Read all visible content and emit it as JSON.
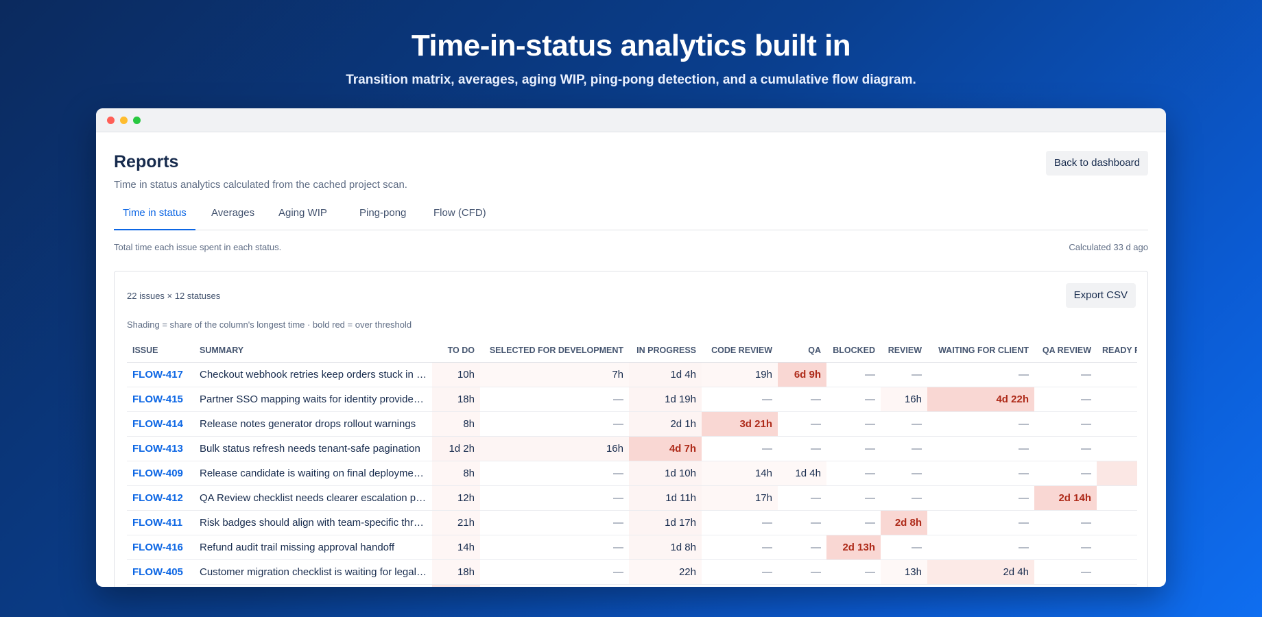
{
  "hero": {
    "title": "Time-in-status analytics built in",
    "subtitle": "Transition matrix, averages, aging WIP, ping-pong detection, and a cumulative flow diagram."
  },
  "page": {
    "title": "Reports",
    "description": "Time in status analytics calculated from the cached project scan.",
    "back_button": "Back to dashboard"
  },
  "tabs": [
    {
      "label": "Time in status",
      "active": true
    },
    {
      "label": "Averages",
      "active": false
    },
    {
      "label": "Aging WIP",
      "active": false
    },
    {
      "label": "Ping-pong",
      "active": false
    },
    {
      "label": "Flow (CFD)",
      "active": false
    }
  ],
  "notes": {
    "left": "Total time each issue spent in each status.",
    "right": "Calculated 33 d ago"
  },
  "panel": {
    "count": "22 issues × 12 statuses",
    "export_button": "Export CSV",
    "legend": "Shading = share of the column's longest time · bold red = over threshold"
  },
  "colors": {
    "accent": "#0c66e4",
    "over_threshold": "#ae2a19",
    "shade_base": "#e34935"
  },
  "table": {
    "columns": [
      "ISSUE",
      "SUMMARY",
      "TO DO",
      "SELECTED FOR DEVELOPMENT",
      "IN PROGRESS",
      "CODE REVIEW",
      "QA",
      "BLOCKED",
      "REVIEW",
      "WAITING FOR CLIENT",
      "QA REVIEW",
      "READY FOR RELEASE"
    ],
    "rows": [
      {
        "issue": "FLOW-417",
        "summary": "Checkout webhook retries keep orders stuck in pending",
        "cells": [
          {
            "v": "10h",
            "s": 0.1
          },
          {
            "v": "7h",
            "s": 0.06
          },
          {
            "v": "1d 4h",
            "s": 0.12
          },
          {
            "v": "19h",
            "s": 0.08
          },
          {
            "v": "6d 9h",
            "s": 1.0,
            "hot": true
          },
          {
            "v": "—",
            "s": 0
          },
          {
            "v": "—",
            "s": 0
          },
          {
            "v": "—",
            "s": 0
          },
          {
            "v": "—",
            "s": 0
          },
          {
            "v": "",
            "s": 0
          }
        ]
      },
      {
        "issue": "FLOW-415",
        "summary": "Partner SSO mapping waits for identity provider confirmation",
        "cells": [
          {
            "v": "18h",
            "s": 0.12
          },
          {
            "v": "—",
            "s": 0
          },
          {
            "v": "1d 19h",
            "s": 0.16
          },
          {
            "v": "—",
            "s": 0
          },
          {
            "v": "—",
            "s": 0
          },
          {
            "v": "—",
            "s": 0
          },
          {
            "v": "16h",
            "s": 0.1
          },
          {
            "v": "4d 22h",
            "s": 1.0,
            "hot": true
          },
          {
            "v": "—",
            "s": 0
          },
          {
            "v": "",
            "s": 0
          }
        ]
      },
      {
        "issue": "FLOW-414",
        "summary": "Release notes generator drops rollout warnings",
        "cells": [
          {
            "v": "8h",
            "s": 0.1
          },
          {
            "v": "—",
            "s": 0
          },
          {
            "v": "2d 1h",
            "s": 0.16
          },
          {
            "v": "3d 21h",
            "s": 1.0,
            "hot": true
          },
          {
            "v": "—",
            "s": 0
          },
          {
            "v": "—",
            "s": 0
          },
          {
            "v": "—",
            "s": 0
          },
          {
            "v": "—",
            "s": 0
          },
          {
            "v": "—",
            "s": 0
          },
          {
            "v": "",
            "s": 0
          }
        ]
      },
      {
        "issue": "FLOW-413",
        "summary": "Bulk status refresh needs tenant-safe pagination",
        "cells": [
          {
            "v": "1d 2h",
            "s": 0.2
          },
          {
            "v": "16h",
            "s": 0.12
          },
          {
            "v": "4d 7h",
            "s": 1.0,
            "hot": true
          },
          {
            "v": "—",
            "s": 0
          },
          {
            "v": "—",
            "s": 0
          },
          {
            "v": "—",
            "s": 0
          },
          {
            "v": "—",
            "s": 0
          },
          {
            "v": "—",
            "s": 0
          },
          {
            "v": "—",
            "s": 0
          },
          {
            "v": "",
            "s": 0
          }
        ]
      },
      {
        "issue": "FLOW-409",
        "summary": "Release candidate is waiting on final deployment approval",
        "cells": [
          {
            "v": "8h",
            "s": 0.1
          },
          {
            "v": "—",
            "s": 0
          },
          {
            "v": "1d 10h",
            "s": 0.14
          },
          {
            "v": "14h",
            "s": 0.06
          },
          {
            "v": "1d 4h",
            "s": 0.06
          },
          {
            "v": "—",
            "s": 0
          },
          {
            "v": "—",
            "s": 0
          },
          {
            "v": "—",
            "s": 0
          },
          {
            "v": "—",
            "s": 0
          },
          {
            "v": "",
            "s": 0.55
          }
        ]
      },
      {
        "issue": "FLOW-412",
        "summary": "QA Review checklist needs clearer escalation path",
        "cells": [
          {
            "v": "12h",
            "s": 0.1
          },
          {
            "v": "—",
            "s": 0
          },
          {
            "v": "1d 11h",
            "s": 0.14
          },
          {
            "v": "17h",
            "s": 0.08
          },
          {
            "v": "—",
            "s": 0
          },
          {
            "v": "—",
            "s": 0
          },
          {
            "v": "—",
            "s": 0
          },
          {
            "v": "—",
            "s": 0
          },
          {
            "v": "2d 14h",
            "s": 1.0,
            "hot": true
          },
          {
            "v": "",
            "s": 0
          }
        ]
      },
      {
        "issue": "FLOW-411",
        "summary": "Risk badges should align with team-specific thresholds",
        "cells": [
          {
            "v": "21h",
            "s": 0.1
          },
          {
            "v": "—",
            "s": 0
          },
          {
            "v": "1d 17h",
            "s": 0.16
          },
          {
            "v": "—",
            "s": 0
          },
          {
            "v": "—",
            "s": 0
          },
          {
            "v": "—",
            "s": 0
          },
          {
            "v": "2d 8h",
            "s": 1.0,
            "hot": true
          },
          {
            "v": "—",
            "s": 0
          },
          {
            "v": "—",
            "s": 0
          },
          {
            "v": "",
            "s": 0
          }
        ]
      },
      {
        "issue": "FLOW-416",
        "summary": "Refund audit trail missing approval handoff",
        "cells": [
          {
            "v": "14h",
            "s": 0.1
          },
          {
            "v": "—",
            "s": 0
          },
          {
            "v": "1d 8h",
            "s": 0.12
          },
          {
            "v": "—",
            "s": 0
          },
          {
            "v": "—",
            "s": 0
          },
          {
            "v": "2d 13h",
            "s": 1.0,
            "hot": true
          },
          {
            "v": "—",
            "s": 0
          },
          {
            "v": "—",
            "s": 0
          },
          {
            "v": "—",
            "s": 0
          },
          {
            "v": "",
            "s": 0
          }
        ]
      },
      {
        "issue": "FLOW-405",
        "summary": "Customer migration checklist is waiting for legal review",
        "cells": [
          {
            "v": "18h",
            "s": 0.1
          },
          {
            "v": "—",
            "s": 0
          },
          {
            "v": "22h",
            "s": 0.08
          },
          {
            "v": "—",
            "s": 0
          },
          {
            "v": "—",
            "s": 0
          },
          {
            "v": "—",
            "s": 0
          },
          {
            "v": "13h",
            "s": 0.06
          },
          {
            "v": "2d 4h",
            "s": 0.45
          },
          {
            "v": "—",
            "s": 0
          },
          {
            "v": "",
            "s": 0
          }
        ]
      },
      {
        "issue": "",
        "summary": "",
        "cells": [
          {
            "v": "",
            "s": 0.55
          },
          {
            "v": "",
            "s": 0
          },
          {
            "v": "",
            "s": 0
          },
          {
            "v": "",
            "s": 0
          },
          {
            "v": "",
            "s": 0
          },
          {
            "v": "",
            "s": 0
          },
          {
            "v": "",
            "s": 0
          },
          {
            "v": "",
            "s": 0
          },
          {
            "v": "",
            "s": 0
          },
          {
            "v": "",
            "s": 0
          }
        ]
      }
    ]
  }
}
